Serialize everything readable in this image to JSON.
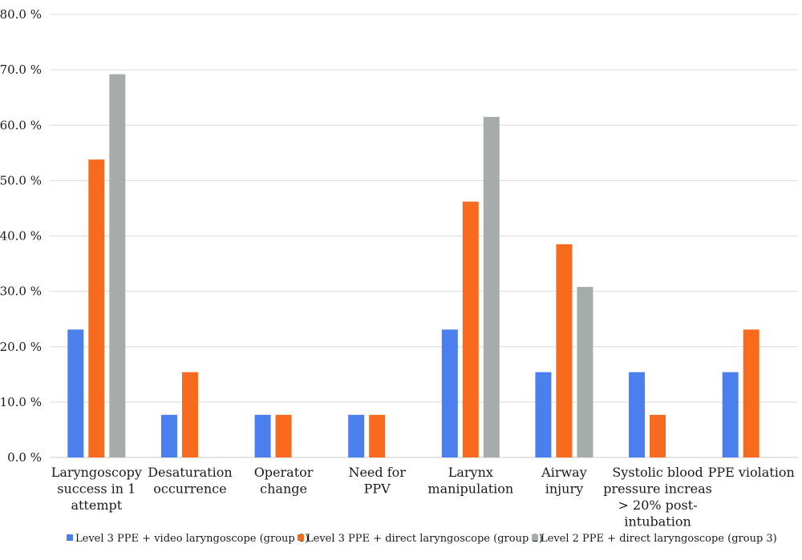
{
  "chart_data": {
    "type": "bar",
    "title": "",
    "xlabel": "",
    "ylabel": "",
    "ylim": [
      0,
      80
    ],
    "ytick_step": 10,
    "ytick_labels": [
      "0.0 %",
      "10.0 %",
      "20.0 %",
      "30.0 %",
      "40.0 %",
      "50.0 %",
      "60.0 %",
      "70.0 %",
      "80.0 %"
    ],
    "grid": true,
    "legend_position": "bottom",
    "categories": [
      [
        "Laryngoscopy",
        "success in 1",
        "attempt"
      ],
      [
        "Desaturation",
        "occurrence"
      ],
      [
        "Operator",
        "change"
      ],
      [
        "Need for",
        "PPV"
      ],
      [
        "Larynx",
        "manipulation"
      ],
      [
        "Airway",
        "injury"
      ],
      [
        "Systolic blood",
        "pressure increas",
        "> 20% post-",
        "intubation"
      ],
      [
        "PPE violation"
      ]
    ],
    "series": [
      {
        "name": "Level 3 PPE + video laryngoscope (group 1)",
        "color": "#4a7fed",
        "values": [
          23.1,
          7.7,
          7.7,
          7.7,
          23.1,
          15.4,
          15.4,
          15.4
        ]
      },
      {
        "name": "Level 3 PPE + direct laryngoscope (group 2)",
        "color": "#f86a1d",
        "values": [
          53.8,
          15.4,
          7.7,
          7.7,
          46.2,
          38.5,
          7.7,
          23.1
        ]
      },
      {
        "name": "Level 2 PPE + direct laryngoscope (group 3)",
        "color": "#a6acab",
        "values": [
          69.2,
          0,
          0,
          0,
          61.5,
          30.8,
          0,
          0
        ]
      }
    ]
  }
}
